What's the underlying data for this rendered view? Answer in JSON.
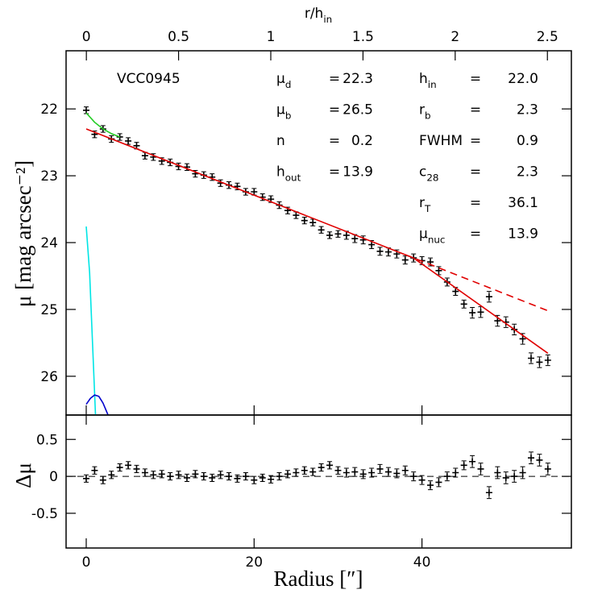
{
  "chart_data": [
    {
      "type": "scatter",
      "annotations": {
        "object": "VCC0945",
        "separator": "=",
        "params": [
          [
            {
              "name": "μ",
              "sub": "d",
              "value": "22.3"
            },
            {
              "name": "μ",
              "sub": "b",
              "value": "26.5"
            },
            {
              "name": "n",
              "value": "0.2"
            },
            {
              "name": "h",
              "sub": "out",
              "value": "13.9"
            }
          ],
          [
            {
              "name": "h",
              "sub": "in",
              "value": "22.0"
            },
            {
              "name": "r",
              "sub": "b",
              "value": "2.3"
            },
            {
              "name": "FWHM",
              "value": "0.9"
            },
            {
              "name": "c",
              "sub": "28",
              "value": "2.3"
            },
            {
              "name": "r",
              "sub": "T",
              "value": "36.1"
            },
            {
              "name": "μ",
              "sub": "nuc",
              "value": "13.9"
            }
          ]
        ]
      },
      "ylabel": "μ [mag arcsec⁻²]",
      "x2label": "r/h",
      "x2label_sub": "in",
      "xlim": [
        -2.4,
        57.8
      ],
      "xticks": [
        0,
        20,
        40
      ],
      "x2lim": [
        -0.11,
        2.63
      ],
      "x2ticks": [
        0,
        0.5,
        1,
        1.5,
        2,
        2.5
      ],
      "ylim": [
        26.58,
        21.13
      ],
      "yticks": [
        22,
        23,
        24,
        25,
        26
      ],
      "series": [
        {
          "type": "errorbar",
          "color": "#000000",
          "x": [
            0,
            1,
            2,
            3,
            4,
            5,
            6,
            7,
            8,
            9,
            10,
            11,
            12,
            13,
            14,
            15,
            16,
            17,
            18,
            19,
            20,
            21,
            22,
            23,
            24,
            25,
            26,
            27,
            28,
            29,
            30,
            31,
            32,
            33,
            34,
            35,
            36,
            37,
            38,
            39,
            40,
            41,
            42,
            43,
            44,
            45,
            46,
            47,
            48,
            49,
            50,
            51,
            52,
            53,
            54,
            55
          ],
          "values": [
            22.02,
            22.38,
            22.3,
            22.45,
            22.42,
            22.48,
            22.55,
            22.7,
            22.72,
            22.78,
            22.8,
            22.86,
            22.87,
            22.97,
            22.99,
            23.02,
            23.11,
            23.14,
            23.16,
            23.24,
            23.24,
            23.32,
            23.35,
            23.44,
            23.52,
            23.59,
            23.67,
            23.7,
            23.81,
            23.89,
            23.87,
            23.89,
            23.94,
            23.96,
            24.03,
            24.13,
            24.14,
            24.17,
            24.26,
            24.23,
            24.27,
            24.29,
            24.42,
            24.59,
            24.73,
            24.92,
            25.05,
            25.04,
            24.81,
            25.17,
            25.19,
            25.3,
            25.44,
            25.73,
            25.79,
            25.76
          ],
          "errors": [
            0.05,
            0.05,
            0.05,
            0.05,
            0.05,
            0.05,
            0.05,
            0.05,
            0.05,
            0.05,
            0.05,
            0.05,
            0.05,
            0.05,
            0.05,
            0.05,
            0.05,
            0.05,
            0.05,
            0.05,
            0.05,
            0.05,
            0.05,
            0.05,
            0.05,
            0.05,
            0.05,
            0.05,
            0.05,
            0.05,
            0.05,
            0.06,
            0.06,
            0.06,
            0.06,
            0.06,
            0.06,
            0.06,
            0.06,
            0.06,
            0.06,
            0.06,
            0.06,
            0.06,
            0.06,
            0.06,
            0.08,
            0.08,
            0.08,
            0.08,
            0.08,
            0.08,
            0.08,
            0.08,
            0.08,
            0.08
          ]
        },
        {
          "type": "line",
          "color": "#e00000",
          "x": [
            0,
            39,
            55
          ],
          "values": [
            22.3,
            24.231,
            25.655
          ]
        },
        {
          "type": "line",
          "color": "#e00000",
          "dash": true,
          "x": [
            38,
            55
          ],
          "values": [
            24.181,
            25.02
          ]
        },
        {
          "type": "line",
          "color": "#22cc22",
          "x": [
            0,
            1,
            2,
            3,
            4
          ],
          "values": [
            22.06,
            22.2,
            22.3,
            22.37,
            22.42
          ]
        },
        {
          "type": "line",
          "color": "#00e5e5",
          "x": [
            0,
            0.4,
            1.1
          ],
          "values": [
            23.76,
            24.45,
            26.58
          ]
        },
        {
          "type": "line",
          "color": "#0000cc",
          "x": [
            0,
            0.5,
            1,
            1.5,
            2,
            2.6
          ],
          "values": [
            26.42,
            26.33,
            26.28,
            26.3,
            26.4,
            26.58
          ]
        }
      ]
    },
    {
      "type": "scatter",
      "xlabel": "Radius [″]",
      "ylabel": "Δμ",
      "xlim": [
        -2.4,
        57.8
      ],
      "xticks": [
        0,
        20,
        40
      ],
      "ylim": [
        -0.97,
        0.83
      ],
      "yticks": [
        -0.5,
        0,
        0.5
      ],
      "hline": 0,
      "series": [
        {
          "type": "errorbar",
          "color": "#000000",
          "values": [
            -0.03,
            0.08,
            -0.05,
            0.02,
            0.12,
            0.15,
            0.1,
            0.05,
            0.02,
            0.03,
            0.0,
            0.02,
            -0.02,
            0.03,
            0.0,
            -0.02,
            0.02,
            0.0,
            -0.03,
            0.0,
            -0.05,
            -0.02,
            -0.04,
            0.0,
            0.03,
            0.05,
            0.08,
            0.06,
            0.12,
            0.15,
            0.08,
            0.05,
            0.06,
            0.03,
            0.05,
            0.1,
            0.06,
            0.04,
            0.08,
            0.0,
            -0.05,
            -0.12,
            -0.08,
            0.0,
            0.05,
            0.15,
            0.2,
            0.1,
            -0.22,
            0.05,
            -0.02,
            0.0,
            0.05,
            0.25,
            0.22,
            0.1
          ]
        }
      ]
    }
  ]
}
